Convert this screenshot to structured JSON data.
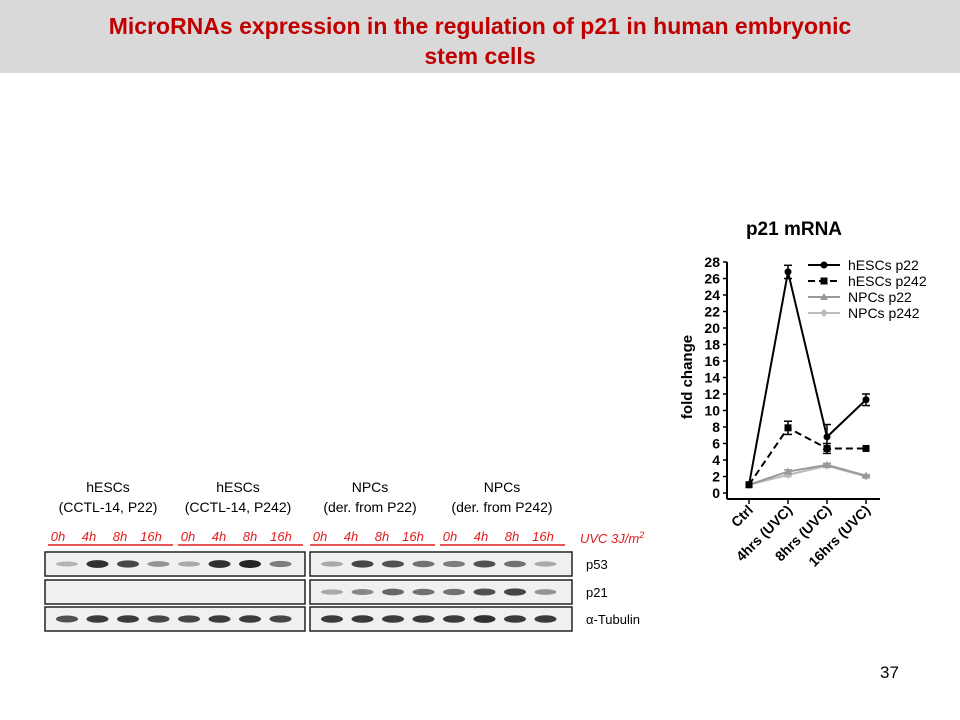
{
  "slide": {
    "title_line1": "MicroRNAs expression in the regulation of p21 in human embryonic",
    "title_line2": "stem cells",
    "page_number": "37",
    "colors": {
      "title": "#c00000",
      "title_bg": "#d9d9d9",
      "timepoint_red": "#e31a1c"
    }
  },
  "western_blot": {
    "groups": [
      {
        "line1": "hESCs",
        "line2": "(CCTL-14, P22)"
      },
      {
        "line1": "hESCs",
        "line2": "(CCTL-14, P242)"
      },
      {
        "line1": "NPCs",
        "line2": "(der. from P22)"
      },
      {
        "line1": "NPCs",
        "line2": "(der. from P242)"
      }
    ],
    "timepoints": [
      "0h",
      "4h",
      "8h",
      "16h"
    ],
    "treatment_label": "UVC 3J/m",
    "treatment_superscript": "2",
    "rows": [
      {
        "label": "p53",
        "intensities": [
          0.25,
          0.85,
          0.75,
          0.4,
          0.3,
          0.85,
          0.9,
          0.5,
          0.3,
          0.75,
          0.7,
          0.55,
          0.5,
          0.7,
          0.55,
          0.3
        ]
      },
      {
        "label": "p21",
        "intensities": [
          0.0,
          0.0,
          0.0,
          0.0,
          0.0,
          0.0,
          0.0,
          0.0,
          0.3,
          0.45,
          0.6,
          0.55,
          0.55,
          0.7,
          0.75,
          0.4
        ]
      },
      {
        "label": "α-Tubulin",
        "intensities": [
          0.7,
          0.8,
          0.8,
          0.75,
          0.75,
          0.8,
          0.8,
          0.75,
          0.8,
          0.8,
          0.8,
          0.8,
          0.8,
          0.85,
          0.8,
          0.8
        ]
      }
    ]
  },
  "chart_data": {
    "type": "line",
    "title": "p21 mRNA",
    "xlabel": "",
    "ylabel": "fold change",
    "categories": [
      "Ctrl",
      "4hrs (UVC)",
      "8hrs (UVC)",
      "16hrs (UVC)"
    ],
    "ylim": [
      0,
      28
    ],
    "yticks": [
      0,
      2,
      4,
      6,
      8,
      10,
      12,
      14,
      16,
      18,
      20,
      22,
      24,
      26,
      28
    ],
    "legend_position": "top-right",
    "series": [
      {
        "name": "hESCs p22",
        "values": [
          1,
          26.8,
          6.8,
          11.3
        ],
        "errors": [
          0,
          0.8,
          1.5,
          0.7
        ],
        "color": "#000000",
        "dash": "solid",
        "marker": "circle"
      },
      {
        "name": "hESCs p242",
        "values": [
          1,
          7.9,
          5.4,
          5.4
        ],
        "errors": [
          0,
          0.8,
          0.6,
          0
        ],
        "color": "#000000",
        "dash": "dashed",
        "marker": "square"
      },
      {
        "name": "NPCs p22",
        "values": [
          1,
          2.6,
          3.4,
          2.1
        ],
        "errors": [
          0,
          0.2,
          0.2,
          0.1
        ],
        "color": "#999999",
        "dash": "solid",
        "marker": "triangle"
      },
      {
        "name": "NPCs p242",
        "values": [
          1,
          2.2,
          3.3,
          2.0
        ],
        "errors": [
          0,
          0.2,
          0.2,
          0.1
        ],
        "color": "#bbbbbb",
        "dash": "solid",
        "marker": "diamond"
      }
    ]
  }
}
